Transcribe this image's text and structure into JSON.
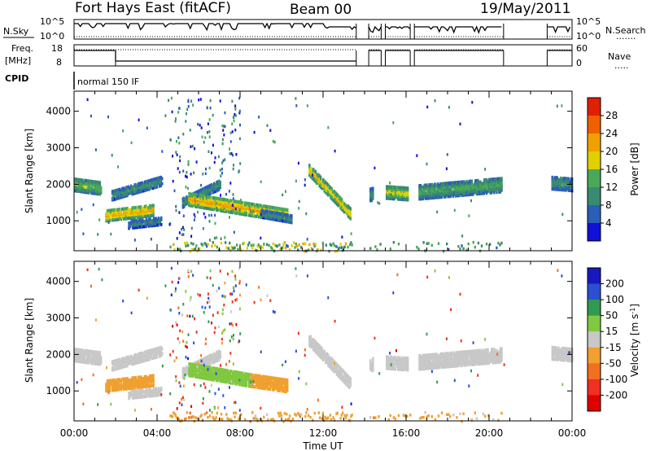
{
  "header": {
    "station": "Fort Hays East (fitACF)",
    "beam": "Beam 00",
    "date": "19/May/2011"
  },
  "top_panels": {
    "noise": {
      "left_label": "N.Sky",
      "left_ticks": [
        "10^5",
        "10^0"
      ],
      "right_ticks": [
        "10^5",
        "10^0"
      ],
      "right_label": "N.Search",
      "right_marker": "......."
    },
    "freq": {
      "left_label": "Freq.",
      "left_unit": "[MHz]",
      "left_ticks": [
        "18",
        "8"
      ],
      "right_ticks": [
        "60",
        "0"
      ],
      "right_label": "Nave",
      "right_marker": "....."
    },
    "cpid": {
      "label": "CPID",
      "value": "normal 150 IF"
    }
  },
  "chart_data": [
    {
      "type": "heatmap",
      "name": "power",
      "xlabel": "Time UT",
      "ylabel": "Slant Range [km]",
      "xlim": [
        0,
        24
      ],
      "ylim": [
        180,
        4550
      ],
      "x_ticks": [
        "00:00",
        "04:00",
        "08:00",
        "12:00",
        "16:00",
        "20:00",
        "00:00"
      ],
      "y_ticks": [
        1000,
        2000,
        3000,
        4000
      ],
      "colorbar": {
        "label": "Power [dB]",
        "ticks": [
          "4",
          "8",
          "12",
          "16",
          "20",
          "24",
          "28"
        ],
        "colors": [
          "#1010d8",
          "#2a5fb8",
          "#3a8a70",
          "#4aa85a",
          "#e0d000",
          "#f0a000",
          "#ee6000",
          "#e02000"
        ]
      },
      "data_gaps_utc_h": [
        [
          13.6,
          14.2
        ],
        [
          14.8,
          15.0
        ],
        [
          16.2,
          16.4
        ],
        [
          20.7,
          22.8
        ]
      ],
      "echo_bands": [
        {
          "t0": 0.0,
          "t1": 1.3,
          "r0": 2000,
          "r1": 1900,
          "width": 350,
          "level": 14
        },
        {
          "t0": 1.5,
          "t1": 3.8,
          "r0": 1150,
          "r1": 1300,
          "width": 300,
          "level": 20
        },
        {
          "t0": 1.8,
          "t1": 4.2,
          "r0": 1700,
          "r1": 2100,
          "width": 250,
          "level": 10
        },
        {
          "t0": 2.6,
          "t1": 4.2,
          "r0": 900,
          "r1": 1000,
          "width": 200,
          "level": 8
        },
        {
          "t0": 5.2,
          "t1": 7.0,
          "r0": 1500,
          "r1": 2000,
          "width": 250,
          "level": 10
        },
        {
          "t0": 5.5,
          "t1": 10.3,
          "r0": 1600,
          "r1": 1150,
          "width": 350,
          "level": 20
        },
        {
          "t0": 9.0,
          "t1": 10.5,
          "r0": 1200,
          "r1": 1050,
          "width": 200,
          "level": 9
        },
        {
          "t0": 11.3,
          "t1": 13.3,
          "r0": 2400,
          "r1": 1200,
          "width": 300,
          "level": 18
        },
        {
          "t0": 14.0,
          "t1": 14.4,
          "r0": 1700,
          "r1": 1750,
          "width": 350,
          "level": 10
        },
        {
          "t0": 14.9,
          "t1": 16.1,
          "r0": 1800,
          "r1": 1750,
          "width": 350,
          "level": 16
        },
        {
          "t0": 16.6,
          "t1": 20.6,
          "r0": 1800,
          "r1": 2000,
          "width": 400,
          "level": 12
        },
        {
          "t0": 23.0,
          "t1": 24.0,
          "r0": 2050,
          "r1": 2000,
          "width": 350,
          "level": 10
        }
      ],
      "ground_scatter_band": {
        "r0": 200,
        "r1": 450,
        "level": 12
      }
    },
    {
      "type": "heatmap",
      "name": "velocity",
      "xlabel": "Time UT",
      "ylabel": "Slant Range [km]",
      "xlim": [
        0,
        24
      ],
      "ylim": [
        180,
        4550
      ],
      "x_ticks": [
        "00:00",
        "04:00",
        "08:00",
        "12:00",
        "16:00",
        "20:00",
        "00:00"
      ],
      "y_ticks": [
        1000,
        2000,
        3000,
        4000
      ],
      "colorbar": {
        "label": "Velocity [m s^-1]",
        "ticks": [
          "200",
          "100",
          "50",
          "15",
          "-15",
          "-50",
          "-100",
          "-200"
        ],
        "colors": [
          "#1818c0",
          "#2a4fd0",
          "#2f9a50",
          "#80c840",
          "#c8c8c8",
          "#f0a030",
          "#f07020",
          "#f03020",
          "#e00000"
        ]
      },
      "data_gaps_utc_h": [
        [
          13.6,
          14.2
        ],
        [
          14.8,
          15.0
        ],
        [
          16.2,
          16.4
        ],
        [
          20.7,
          22.8
        ]
      ],
      "echo_bands": [
        {
          "t0": 0.0,
          "t1": 1.3,
          "r0": 2000,
          "r1": 1900,
          "width": 350,
          "level": -5
        },
        {
          "t0": 1.5,
          "t1": 3.8,
          "r0": 1150,
          "r1": 1300,
          "width": 300,
          "level": -40
        },
        {
          "t0": 1.8,
          "t1": 4.2,
          "r0": 1700,
          "r1": 2100,
          "width": 250,
          "level": -8
        },
        {
          "t0": 2.6,
          "t1": 4.2,
          "r0": 900,
          "r1": 1000,
          "width": 200,
          "level": 5
        },
        {
          "t0": 5.2,
          "t1": 7.0,
          "r0": 1500,
          "r1": 2000,
          "width": 250,
          "level": 5
        },
        {
          "t0": 5.5,
          "t1": 8.5,
          "r0": 1600,
          "r1": 1300,
          "width": 350,
          "level": 30
        },
        {
          "t0": 8.5,
          "t1": 10.3,
          "r0": 1300,
          "r1": 1150,
          "width": 350,
          "level": -40
        },
        {
          "t0": 11.3,
          "t1": 13.3,
          "r0": 2400,
          "r1": 1200,
          "width": 300,
          "level": 3
        },
        {
          "t0": 14.0,
          "t1": 14.4,
          "r0": 1700,
          "r1": 1750,
          "width": 350,
          "level": 0
        },
        {
          "t0": 14.9,
          "t1": 16.1,
          "r0": 1800,
          "r1": 1750,
          "width": 350,
          "level": 0
        },
        {
          "t0": 16.6,
          "t1": 20.6,
          "r0": 1800,
          "r1": 2000,
          "width": 400,
          "level": 0
        },
        {
          "t0": 23.0,
          "t1": 24.0,
          "r0": 2050,
          "r1": 2000,
          "width": 350,
          "level": 0
        }
      ],
      "ground_scatter_band": {
        "r0": 200,
        "r1": 450,
        "level": -40
      }
    }
  ]
}
